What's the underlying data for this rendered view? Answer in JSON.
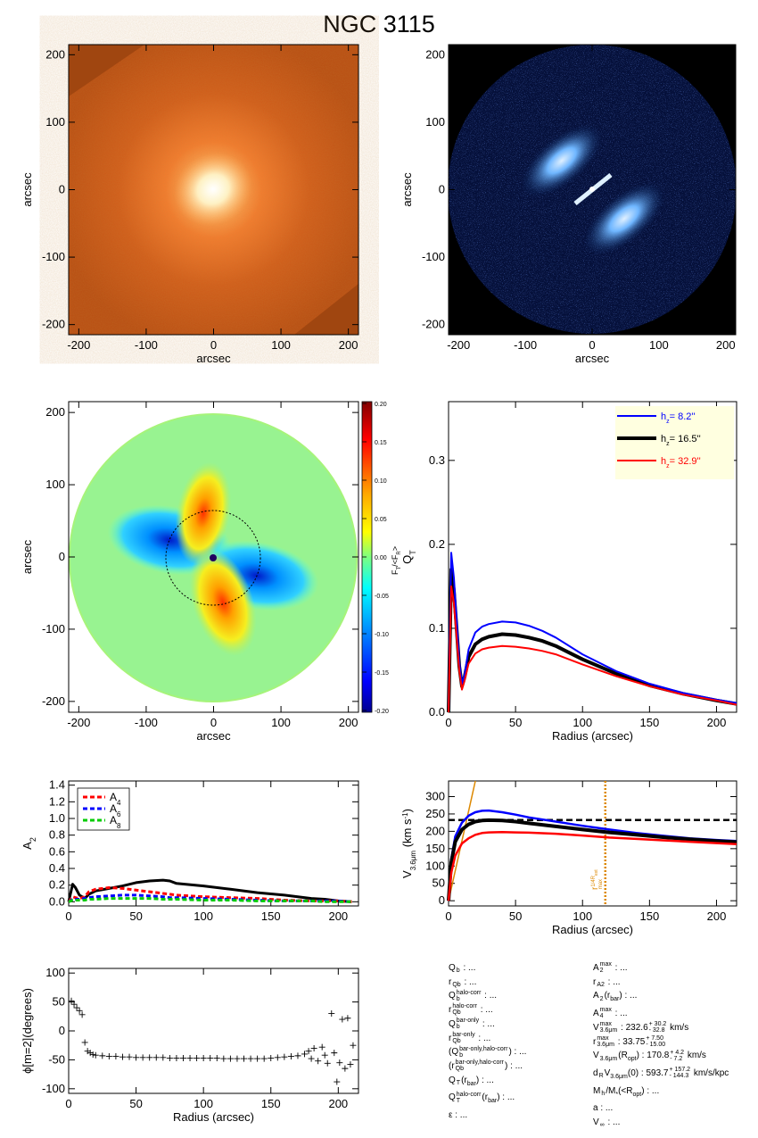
{
  "title": "NGC 3115",
  "colors": {
    "blue": "#0000ff",
    "black": "#000000",
    "red": "#ff0000",
    "green": "#00cc00",
    "orange": "#dd8800",
    "legend_bg": "#ffffe0"
  },
  "chart_data": [
    {
      "id": "image_irac",
      "type": "heatmap",
      "xlabel": "arcsec",
      "ylabel": "arcsec",
      "xlim": [
        -215,
        215
      ],
      "ylim": [
        -215,
        215
      ],
      "xticks": [
        -200,
        -100,
        0,
        100,
        200
      ],
      "yticks": [
        -200,
        -100,
        0,
        100,
        200
      ]
    },
    {
      "id": "image_residual",
      "type": "heatmap",
      "xlabel": "arcsec",
      "ylabel": "arcsec",
      "xlim": [
        -215,
        215
      ],
      "ylim": [
        -215,
        215
      ],
      "xticks": [
        -200,
        -100,
        0,
        100,
        200
      ],
      "yticks": [
        -200,
        -100,
        0,
        100,
        200
      ]
    },
    {
      "id": "force_map",
      "type": "heatmap",
      "xlabel": "arcsec",
      "ylabel": "arcsec",
      "xlim": [
        -215,
        215
      ],
      "ylim": [
        -215,
        215
      ],
      "xticks": [
        -200,
        -100,
        0,
        100,
        200
      ],
      "yticks": [
        -200,
        -100,
        0,
        100,
        200
      ],
      "colorbar": {
        "label": "F_T/<F_R>",
        "range": [
          -0.2,
          0.2
        ],
        "ticks": [
          "0.20",
          "0.15",
          "0.10",
          "0.05",
          "0.00",
          "-0.05",
          "-0.10",
          "-0.15",
          "-0.20"
        ]
      },
      "circle_radius": 68
    },
    {
      "id": "qt_profile",
      "type": "line",
      "xlabel": "Radius (arcsec)",
      "ylabel": "Q_T",
      "xlim": [
        0,
        215
      ],
      "ylim": [
        0,
        0.37
      ],
      "xticks": [
        0,
        50,
        100,
        150,
        200
      ],
      "yticks": [
        "0.0",
        "0.1",
        "0.2",
        "0.3"
      ],
      "legend": "top-right",
      "x": [
        0,
        2,
        4,
        6,
        8,
        10,
        12,
        15,
        20,
        25,
        30,
        40,
        50,
        60,
        70,
        80,
        100,
        125,
        150,
        175,
        200,
        215
      ],
      "series": [
        {
          "name": "h_z = 8.2''",
          "color": "blue",
          "y": [
            0.0,
            0.19,
            0.16,
            0.11,
            0.06,
            0.034,
            0.045,
            0.075,
            0.095,
            0.102,
            0.105,
            0.108,
            0.107,
            0.103,
            0.097,
            0.089,
            0.069,
            0.049,
            0.034,
            0.023,
            0.015,
            0.011
          ]
        },
        {
          "name": "h_z = 16.5''",
          "color": "black",
          "y": [
            0.0,
            0.17,
            0.145,
            0.1,
            0.055,
            0.031,
            0.042,
            0.066,
            0.081,
            0.087,
            0.09,
            0.093,
            0.092,
            0.089,
            0.085,
            0.079,
            0.063,
            0.046,
            0.032,
            0.022,
            0.014,
            0.01
          ]
        },
        {
          "name": "h_z = 32.9''",
          "color": "red",
          "y": [
            0.0,
            0.15,
            0.13,
            0.09,
            0.05,
            0.027,
            0.038,
            0.058,
            0.07,
            0.075,
            0.077,
            0.079,
            0.078,
            0.076,
            0.073,
            0.069,
            0.057,
            0.043,
            0.031,
            0.021,
            0.014,
            0.009
          ]
        }
      ]
    },
    {
      "id": "a2_profile",
      "type": "line",
      "xlabel": "",
      "ylabel": "A_2",
      "xlim": [
        0,
        215
      ],
      "ylim": [
        -0.05,
        1.45
      ],
      "xticks": [
        0,
        50,
        100,
        150,
        200
      ],
      "yticks": [
        "0.0",
        "0.2",
        "0.4",
        "0.6",
        "0.8",
        "1.0",
        "1.2",
        "1.4"
      ],
      "legend": "top-left",
      "x": [
        0,
        3,
        5,
        8,
        12,
        15,
        20,
        30,
        40,
        50,
        60,
        70,
        75,
        80,
        100,
        120,
        140,
        160,
        180,
        190,
        200,
        210
      ],
      "series": [
        {
          "name": "A2",
          "color": "black",
          "y": [
            0.0,
            0.21,
            0.17,
            0.08,
            0.04,
            0.09,
            0.13,
            0.16,
            0.19,
            0.23,
            0.25,
            0.26,
            0.25,
            0.22,
            0.19,
            0.15,
            0.11,
            0.08,
            0.04,
            0.03,
            0.01,
            0.0
          ]
        },
        {
          "name": "A4",
          "color": "red",
          "y": [
            0.0,
            0.06,
            0.05,
            0.04,
            0.06,
            0.12,
            0.15,
            0.17,
            0.16,
            0.14,
            0.12,
            0.1,
            0.09,
            0.08,
            0.06,
            0.05,
            0.04,
            0.02,
            0.01,
            0.01,
            0.01,
            0.0
          ]
        },
        {
          "name": "A6",
          "color": "blue",
          "y": [
            0.0,
            0.03,
            0.03,
            0.03,
            0.04,
            0.05,
            0.06,
            0.07,
            0.08,
            0.08,
            0.07,
            0.06,
            0.05,
            0.05,
            0.04,
            0.03,
            0.02,
            0.01,
            0.01,
            0.01,
            0.01,
            0.0
          ]
        },
        {
          "name": "A8",
          "color": "green",
          "y": [
            0.0,
            0.02,
            0.02,
            0.02,
            0.02,
            0.03,
            0.03,
            0.04,
            0.04,
            0.04,
            0.04,
            0.03,
            0.03,
            0.03,
            0.02,
            0.02,
            0.01,
            0.01,
            0.01,
            0.0,
            0.0,
            0.0
          ]
        }
      ],
      "legend_labels": [
        {
          "text": "A",
          "sub": "4",
          "color": "red"
        },
        {
          "text": "A",
          "sub": "6",
          "color": "blue"
        },
        {
          "text": "A",
          "sub": "8",
          "color": "green"
        }
      ]
    },
    {
      "id": "rotation_curve",
      "type": "line",
      "xlabel": "Radius (arcsec)",
      "ylabel": "V_3.6μm (km s⁻¹)",
      "xlim": [
        0,
        215
      ],
      "ylim": [
        -15,
        345
      ],
      "xticks": [
        0,
        50,
        100,
        150,
        200
      ],
      "yticks": [
        0,
        50,
        100,
        150,
        200,
        250,
        300
      ],
      "x": [
        0,
        2,
        5,
        10,
        15,
        20,
        25,
        30,
        40,
        50,
        60,
        80,
        100,
        120,
        140,
        160,
        180,
        200,
        215
      ],
      "series": [
        {
          "color": "blue",
          "y": [
            0,
            120,
            185,
            225,
            245,
            255,
            259,
            260,
            255,
            248,
            240,
            228,
            216,
            205,
            195,
            187,
            180,
            175,
            172
          ]
        },
        {
          "color": "black",
          "y": [
            0,
            110,
            170,
            205,
            220,
            228,
            231,
            232,
            231,
            228,
            223,
            214,
            205,
            197,
            190,
            183,
            177,
            172,
            169
          ]
        },
        {
          "color": "red",
          "y": [
            0,
            80,
            130,
            165,
            180,
            190,
            195,
            197,
            198,
            197,
            196,
            193,
            188,
            182,
            178,
            174,
            170,
            166,
            163
          ]
        }
      ],
      "vmax_line": 232.6,
      "vertical_line_x": 117,
      "vertical_line_label": "r_max^(1/4R_ext)",
      "inner_slope_line": [
        [
          0,
          0
        ],
        [
          20,
          345
        ]
      ]
    },
    {
      "id": "phase_profile",
      "type": "scatter",
      "xlabel": "Radius (arcsec)",
      "ylabel": "ϕ[m=2](degrees)",
      "xlim": [
        0,
        215
      ],
      "ylim": [
        -108,
        108
      ],
      "xticks": [
        0,
        50,
        100,
        150,
        200
      ],
      "yticks": [
        100,
        50,
        0,
        -50,
        -100
      ],
      "points": [
        [
          2,
          52
        ],
        [
          4,
          46
        ],
        [
          6,
          40
        ],
        [
          8,
          35
        ],
        [
          10,
          28
        ],
        [
          12,
          -20
        ],
        [
          14,
          -35
        ],
        [
          16,
          -38
        ],
        [
          18,
          -41
        ],
        [
          20,
          -42
        ],
        [
          25,
          -43
        ],
        [
          30,
          -44
        ],
        [
          35,
          -44
        ],
        [
          40,
          -45
        ],
        [
          45,
          -45
        ],
        [
          50,
          -46
        ],
        [
          55,
          -46
        ],
        [
          60,
          -46
        ],
        [
          65,
          -46
        ],
        [
          70,
          -46
        ],
        [
          75,
          -47
        ],
        [
          80,
          -47
        ],
        [
          85,
          -47
        ],
        [
          90,
          -47
        ],
        [
          95,
          -47
        ],
        [
          100,
          -47
        ],
        [
          105,
          -47
        ],
        [
          110,
          -47
        ],
        [
          115,
          -48
        ],
        [
          120,
          -48
        ],
        [
          125,
          -48
        ],
        [
          130,
          -48
        ],
        [
          135,
          -48
        ],
        [
          140,
          -48
        ],
        [
          145,
          -48
        ],
        [
          150,
          -47
        ],
        [
          155,
          -46
        ],
        [
          160,
          -45
        ],
        [
          165,
          -44
        ],
        [
          170,
          -43
        ],
        [
          175,
          -40
        ],
        [
          178,
          -35
        ],
        [
          180,
          -48
        ],
        [
          182,
          -30
        ],
        [
          185,
          -52
        ],
        [
          188,
          -28
        ],
        [
          190,
          -42
        ],
        [
          192,
          -56
        ],
        [
          195,
          30
        ],
        [
          197,
          -38
        ],
        [
          199,
          -88
        ],
        [
          201,
          -55
        ],
        [
          203,
          20
        ],
        [
          205,
          -65
        ],
        [
          207,
          22
        ],
        [
          209,
          -58
        ],
        [
          211,
          -25
        ]
      ]
    }
  ],
  "params": {
    "left": [
      {
        "main": "Q",
        "sub": "b",
        "rest": " : ..."
      },
      {
        "main": "r",
        "sub": "Qb",
        "rest": " : ..."
      },
      {
        "main": "Q",
        "sub": "b",
        "sup": "halo-corr",
        "rest": " : ..."
      },
      {
        "main": "r",
        "sub": "Qb",
        "sup": "halo-corr",
        "rest": " : ..."
      },
      {
        "main": "Q",
        "sub": "b",
        "sup": "bar-only",
        "rest": " : ..."
      },
      {
        "main": "r",
        "sub": "Qb",
        "sup": "bar-only",
        "rest": " : ..."
      },
      {
        "main": "(Q",
        "sub": "b",
        "sup": "bar-only,halo-corr",
        "rest": ") : ..."
      },
      {
        "main": "(r",
        "sub": "Qb",
        "sup": "bar-only,halo-corr",
        "rest": ") : ..."
      },
      {
        "main": "Q",
        "sub": "T",
        "rest": "(r",
        "sub2": "bar",
        "rest2": ") : ..."
      },
      {
        "main": "Q",
        "sub": "T",
        "sup": "halo-corr",
        "rest": "(r",
        "sub2": "bar",
        "rest2": ") : ..."
      },
      {
        "main": "ε",
        "rest": " : ..."
      }
    ],
    "right": [
      {
        "main": "A",
        "sub": "2",
        "sup": "max",
        "rest": " : ..."
      },
      {
        "main": "r",
        "sub": "A2",
        "rest": " : ..."
      },
      {
        "main": "A",
        "sub": "2",
        "rest": "(r",
        "sub2": "bar",
        "rest2": ") : ..."
      },
      {
        "main": "A",
        "sub": "4",
        "sup": "max",
        "rest": " : ..."
      },
      {
        "main": "V",
        "sub": "3.6μm",
        "sup": "max",
        "rest": " : 232.6",
        "errsup": "+ 30.2",
        "errsub": "- 32.8",
        "rest2": " km/s"
      },
      {
        "main": "r",
        "sub": "3.6μm",
        "sup": "max",
        "rest": " : 33.75",
        "errsup": "+ 7.50",
        "errsub": "- 15.00",
        "rest2": ""
      },
      {
        "main": "V",
        "sub": "3.6μm",
        "rest": "(R",
        "sub2": "opt",
        "rest2": ") : 170.8",
        "errsup": "+ 4.2",
        "errsub": "- 7.2",
        "rest3": " km/s"
      },
      {
        "main": "d",
        "sub": "R",
        "rest": "V",
        "sub2": "3.6μm",
        "rest2": "(0) : 593.7",
        "errsup": "+ 157.2",
        "errsub": "- 144.3",
        "rest3": " km/s/kpc"
      },
      {
        "main": "M",
        "sub": "h",
        "rest": "/M",
        "sub2": "*",
        "rest2": "(<R",
        "sub3": "opt",
        "rest3": ") : ..."
      },
      {
        "main": "a",
        "rest": " : ..."
      },
      {
        "main": "V",
        "sub": "∞",
        "rest": " : ..."
      }
    ]
  }
}
